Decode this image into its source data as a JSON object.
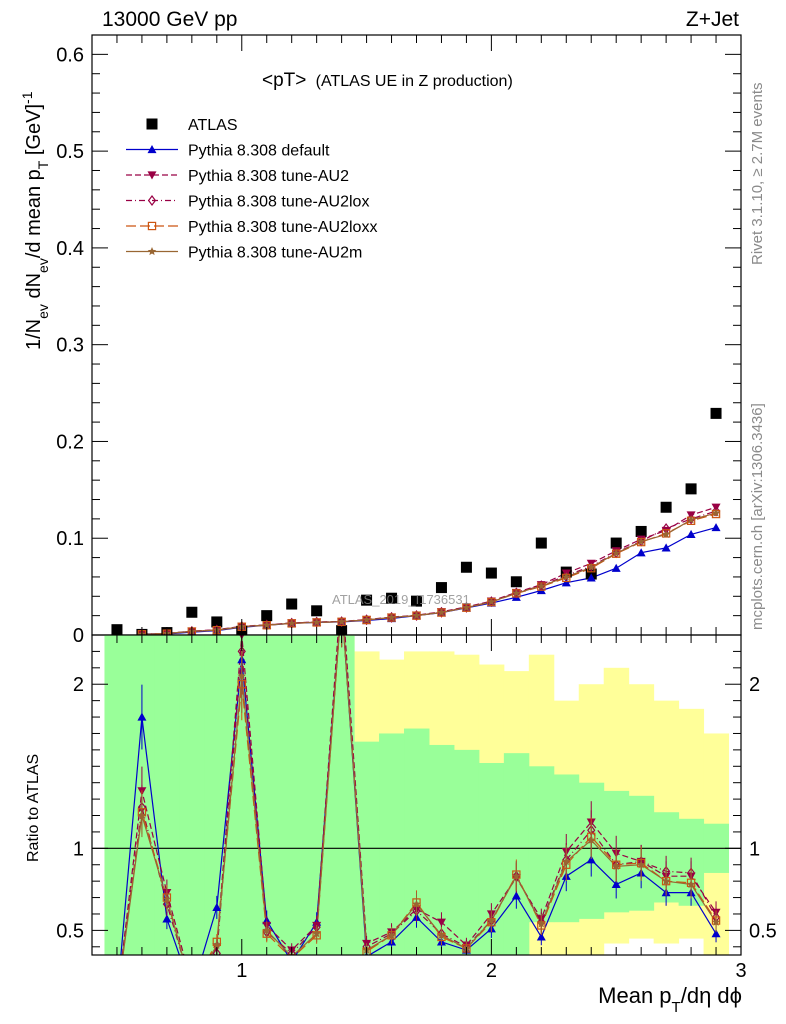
{
  "header": {
    "left": "13000 GeV pp",
    "right": "Z+Jet"
  },
  "side": {
    "rivet": "Rivet 3.1.10, ≥ 2.7M events",
    "mcplots": "mcplots.cern.ch [arXiv:1306.3436]"
  },
  "watermark": "ATLAS_2019_I1736531",
  "chart_data": [
    {
      "type": "scatter",
      "panel": "main",
      "title_main": "<pT>",
      "title_sub": "(ATLAS UE in Z production)",
      "ylabel": "1/N_ev dN_ev/d mean p_T [GeV]^-1",
      "xlabel": "Mean p_T/dη dφ",
      "xlim": [
        0.4,
        3.0
      ],
      "ylim": [
        0,
        0.62
      ],
      "x_ticks": [
        1,
        2,
        3
      ],
      "y_ticks": [
        0,
        0.1,
        0.2,
        0.3,
        0.4,
        0.5,
        0.6
      ],
      "y_tick_labels": [
        "0",
        "0.1",
        "0.2",
        "0.3",
        "0.4",
        "0.5",
        "0.6"
      ],
      "x": [
        0.5,
        0.6,
        0.7,
        0.8,
        0.9,
        1.0,
        1.1,
        1.2,
        1.3,
        1.4,
        1.5,
        1.6,
        1.7,
        1.8,
        1.9,
        2.0,
        2.1,
        2.2,
        2.3,
        2.4,
        2.5,
        2.6,
        2.7,
        2.8,
        2.9
      ],
      "legend": [
        "ATLAS",
        "Pythia 8.308 default",
        "Pythia 8.308 tune-AU2",
        "Pythia 8.308 tune-AU2lox",
        "Pythia 8.308 tune-AU2loxx",
        "Pythia 8.308 tune-AU2m"
      ],
      "series": [
        {
          "name": "ATLAS",
          "color": "#000000",
          "marker": "square",
          "style": "points",
          "values": [
            0.0055,
            0.0006,
            0.0025,
            0.0235,
            0.0135,
            0.0038,
            0.02,
            0.032,
            0.025,
            0.0045,
            0.036,
            0.038,
            0.035,
            0.049,
            0.07,
            0.064,
            0.055,
            0.095,
            0.065,
            0.063,
            0.095,
            0.107,
            0.132,
            0.151,
            0.229
          ]
        },
        {
          "name": "Pythia 8.308 default",
          "color": "#0000cc",
          "marker": "triangle-up",
          "style": "solid",
          "values": [
            null,
            0.0011,
            0.001,
            0.003,
            0.0045,
            0.008,
            0.01,
            0.012,
            0.013,
            0.0135,
            0.015,
            0.017,
            0.02,
            0.023,
            0.028,
            0.033,
            0.039,
            0.046,
            0.054,
            0.059,
            0.069,
            0.085,
            0.09,
            0.104,
            0.111
          ]
        },
        {
          "name": "Pythia 8.308 tune-AU2",
          "color": "#990044",
          "marker": "triangle-down",
          "style": "dashed",
          "values": [
            null,
            0.0008,
            0.0017,
            0.004,
            0.0055,
            0.009,
            0.0105,
            0.0125,
            0.0135,
            0.014,
            0.016,
            0.0185,
            0.0205,
            0.024,
            0.029,
            0.035,
            0.044,
            0.052,
            0.064,
            0.074,
            0.087,
            0.099,
            0.108,
            0.124,
            0.132
          ]
        },
        {
          "name": "Pythia 8.308 tune-AU2lox",
          "color": "#990044",
          "marker": "diamond",
          "style": "dashdot",
          "values": [
            null,
            0.0009,
            0.0015,
            0.0038,
            0.0052,
            0.0088,
            0.0103,
            0.0123,
            0.0133,
            0.0138,
            0.0158,
            0.0182,
            0.0202,
            0.0235,
            0.0285,
            0.0345,
            0.0435,
            0.051,
            0.0615,
            0.071,
            0.085,
            0.097,
            0.11,
            0.12,
            0.128
          ]
        },
        {
          "name": "Pythia 8.308 tune-AU2loxx",
          "color": "#cc5511",
          "marker": "square-open",
          "style": "longdash",
          "values": [
            null,
            0.0008,
            0.0014,
            0.0036,
            0.005,
            0.0085,
            0.0101,
            0.012,
            0.013,
            0.0136,
            0.0155,
            0.018,
            0.02,
            0.0232,
            0.0282,
            0.034,
            0.043,
            0.05,
            0.059,
            0.069,
            0.084,
            0.096,
            0.105,
            0.118,
            0.125
          ]
        },
        {
          "name": "Pythia 8.308 tune-AU2m",
          "color": "#996633",
          "marker": "star",
          "style": "solid",
          "values": [
            null,
            0.0007,
            0.0016,
            0.0037,
            0.0051,
            0.0086,
            0.0102,
            0.0121,
            0.0131,
            0.0137,
            0.0156,
            0.0181,
            0.0201,
            0.0233,
            0.0283,
            0.0342,
            0.0432,
            0.0505,
            0.06,
            0.07,
            0.0845,
            0.0965,
            0.104,
            0.119,
            0.126
          ]
        }
      ]
    },
    {
      "type": "line",
      "panel": "ratio",
      "ylabel": "Ratio to ATLAS",
      "ylim": [
        0.35,
        2.3
      ],
      "y_ticks": [
        0.5,
        1,
        2
      ],
      "y_tick_labels": [
        "0.5",
        "1",
        "2"
      ],
      "x": [
        0.5,
        0.6,
        0.7,
        0.8,
        0.9,
        1.0,
        1.1,
        1.2,
        1.3,
        1.4,
        1.5,
        1.6,
        1.7,
        1.8,
        1.9,
        2.0,
        2.1,
        2.2,
        2.3,
        2.4,
        2.5,
        2.6,
        2.7,
        2.8,
        2.9
      ],
      "x_ticks": [
        1,
        2,
        3
      ],
      "x_tick_labels": [
        "1",
        "2",
        "3"
      ],
      "bin_edges": [
        0.45,
        0.55,
        0.65,
        0.75,
        0.85,
        0.95,
        1.05,
        1.15,
        1.25,
        1.35,
        1.45,
        1.55,
        1.65,
        1.75,
        1.85,
        1.95,
        2.05,
        2.15,
        2.25,
        2.35,
        2.45,
        2.55,
        2.65,
        2.75,
        2.85,
        2.95
      ],
      "band_inner": {
        "color": "#99ff99",
        "lo": [
          0.3,
          0.3,
          0.3,
          0.3,
          0.3,
          0.3,
          0.3,
          0.3,
          0.3,
          0.3,
          0.3,
          0.3,
          0.3,
          0.3,
          0.3,
          0.3,
          0.3,
          0.55,
          0.55,
          0.57,
          0.61,
          0.62,
          0.67,
          0.65,
          0.85
        ],
        "hi": [
          2.4,
          2.4,
          2.4,
          2.4,
          2.4,
          2.4,
          2.4,
          2.4,
          2.4,
          2.4,
          1.65,
          1.7,
          1.73,
          1.63,
          1.6,
          1.52,
          1.58,
          1.5,
          1.45,
          1.4,
          1.35,
          1.32,
          1.22,
          1.18,
          1.15
        ]
      },
      "band_outer": {
        "color": "#ffff99",
        "lo": [
          0.3,
          0.3,
          0.3,
          0.3,
          0.3,
          0.3,
          0.3,
          0.3,
          0.3,
          0.3,
          0.3,
          0.3,
          0.3,
          0.3,
          0.3,
          0.3,
          0.3,
          0.3,
          0.3,
          0.3,
          0.42,
          0.45,
          0.42,
          0.45,
          0.3
        ],
        "hi": [
          2.4,
          2.4,
          2.2,
          2.4,
          2.4,
          2.4,
          2.4,
          2.4,
          2.4,
          2.4,
          2.2,
          2.15,
          2.2,
          2.2,
          2.18,
          2.12,
          2.08,
          2.18,
          1.9,
          2.0,
          2.1,
          2.0,
          1.9,
          1.85,
          1.7
        ]
      },
      "reference": 1,
      "series": [
        {
          "name": "Pythia 8.308 default",
          "color": "#0000cc",
          "marker": "triangle-up",
          "style": "solid",
          "values": [
            0.08,
            1.8,
            0.57,
            0.13,
            0.64,
            2.15,
            0.56,
            0.31,
            0.55,
            2.5,
            0.34,
            0.43,
            0.58,
            0.43,
            0.38,
            0.51,
            0.71,
            0.46,
            0.83,
            0.93,
            0.78,
            0.85,
            0.73,
            0.73,
            0.48
          ]
        },
        {
          "name": "Pythia 8.308 tune-AU2",
          "color": "#990044",
          "marker": "triangle-down",
          "style": "dashed",
          "values": [
            0.08,
            1.35,
            0.73,
            0.17,
            0.4,
            2.3,
            0.53,
            0.38,
            0.53,
            2.6,
            0.42,
            0.49,
            0.63,
            0.55,
            0.41,
            0.6,
            0.82,
            0.57,
            0.98,
            1.16,
            0.97,
            0.92,
            0.83,
            0.83,
            0.61
          ]
        },
        {
          "name": "Pythia 8.308 tune-AU2lox",
          "color": "#990044",
          "marker": "diamond",
          "style": "dashdot",
          "values": [
            0.08,
            1.25,
            0.66,
            0.15,
            0.36,
            2.2,
            0.49,
            0.36,
            0.52,
            2.5,
            0.4,
            0.48,
            0.62,
            0.48,
            0.4,
            0.56,
            0.83,
            0.55,
            0.93,
            1.11,
            0.9,
            0.92,
            0.86,
            0.85,
            0.58
          ]
        },
        {
          "name": "Pythia 8.308 tune-AU2loxx",
          "color": "#cc5511",
          "marker": "square-open",
          "style": "longdash",
          "values": [
            0.08,
            1.22,
            0.7,
            0.14,
            0.43,
            2.0,
            0.48,
            0.33,
            0.47,
            2.5,
            0.37,
            0.47,
            0.67,
            0.46,
            0.39,
            0.55,
            0.84,
            0.53,
            0.9,
            1.07,
            0.9,
            0.91,
            0.8,
            0.79,
            0.56
          ]
        },
        {
          "name": "Pythia 8.308 tune-AU2m",
          "color": "#996633",
          "marker": "star",
          "style": "solid",
          "values": [
            0.08,
            1.2,
            0.69,
            0.14,
            0.41,
            2.05,
            0.5,
            0.34,
            0.48,
            2.5,
            0.38,
            0.47,
            0.66,
            0.47,
            0.39,
            0.56,
            0.83,
            0.54,
            0.92,
            1.05,
            0.89,
            0.9,
            0.8,
            0.78,
            0.55
          ]
        }
      ]
    }
  ]
}
